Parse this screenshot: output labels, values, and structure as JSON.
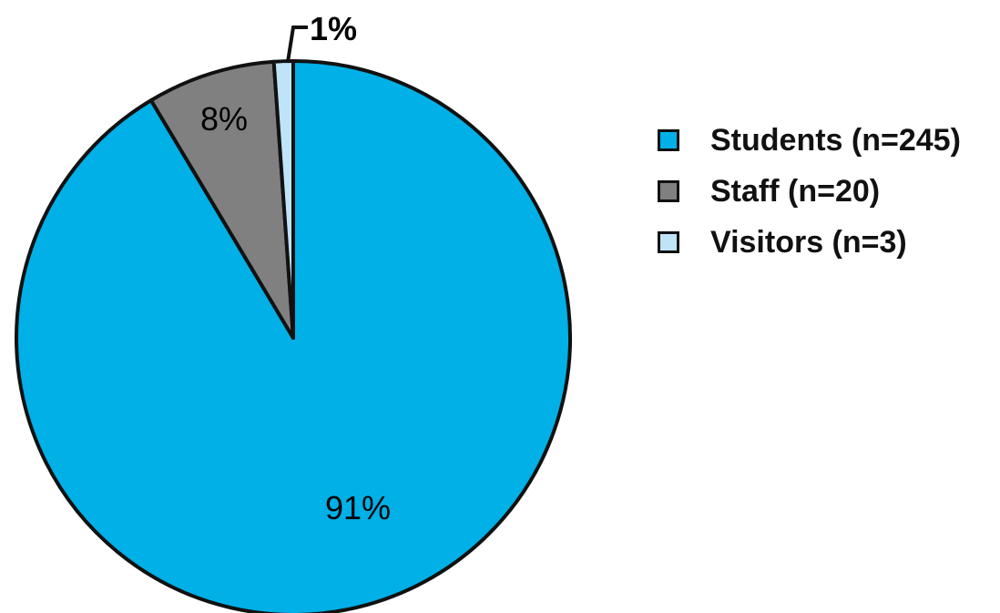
{
  "chart_data": {
    "type": "pie",
    "slices": [
      {
        "name": "Students (n=245)",
        "value": 245,
        "percent_label": "91%",
        "color": "#00b0e6"
      },
      {
        "name": "Staff (n=20)",
        "value": 20,
        "percent_label": "8%",
        "color": "#808080"
      },
      {
        "name": "Visitors (n=3)",
        "value": 3,
        "percent_label": "1%",
        "color": "#bfe3f7"
      }
    ],
    "title": "",
    "legend_position": "right",
    "start_angle": "12 o'clock",
    "direction": "clockwise",
    "outline_color": "#111111"
  }
}
